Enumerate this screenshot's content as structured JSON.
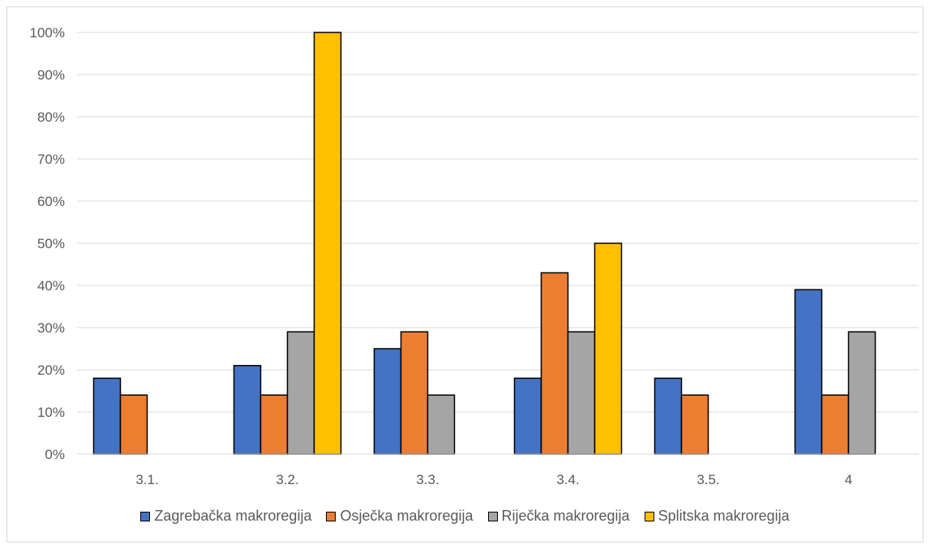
{
  "chart_data": {
    "type": "bar",
    "categories": [
      "3.1.",
      "3.2.",
      "3.3.",
      "3.4.",
      "3.5.",
      "4"
    ],
    "y_tick_labels": [
      "0%",
      "10%",
      "20%",
      "30%",
      "40%",
      "50%",
      "60%",
      "70%",
      "80%",
      "90%",
      "100%"
    ],
    "ylim": [
      0,
      100
    ],
    "grid": true,
    "legend_position": "bottom",
    "series": [
      {
        "name": "Zagrebačka makroregija",
        "color": "#4472c4",
        "values": [
          18,
          21,
          25,
          18,
          18,
          39
        ]
      },
      {
        "name": "Osječka makroregija",
        "color": "#ed7d31",
        "values": [
          14,
          14,
          29,
          43,
          14,
          14
        ]
      },
      {
        "name": "Riječka makroregija",
        "color": "#a5a5a5",
        "values": [
          0,
          29,
          14,
          29,
          0,
          29
        ]
      },
      {
        "name": "Splitska makroregija",
        "color": "#ffc000",
        "values": [
          0,
          100,
          0,
          50,
          0,
          0
        ]
      }
    ]
  }
}
